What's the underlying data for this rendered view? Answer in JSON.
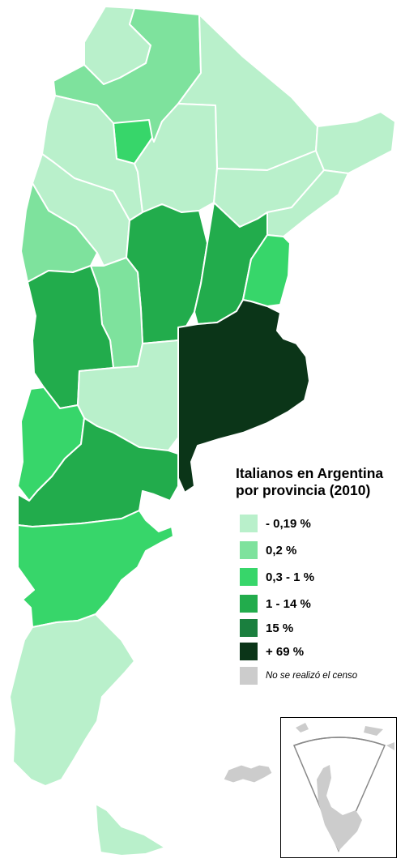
{
  "legend": {
    "title_line1": "Italianos en Argentina",
    "title_line2": "por provincia (2010)",
    "items": [
      {
        "label": "- 0,19 %",
        "color": "#b9f0cb"
      },
      {
        "label": "0,2 %",
        "color": "#7ee29d"
      },
      {
        "label": "0,3 - 1 %",
        "color": "#37d66a"
      },
      {
        "label": "1 - 14 %",
        "color": "#22ac4c"
      },
      {
        "label": "15 %",
        "color": "#1a7f3e"
      },
      {
        "label": "+ 69 %",
        "color": "#0b3518"
      }
    ],
    "no_census": {
      "label": "No se realizó el censo",
      "color": "#cccccc"
    }
  },
  "provinces": [
    {
      "name": "Jujuy",
      "class": "- 0,19 %"
    },
    {
      "name": "Salta",
      "class": "0,2 %"
    },
    {
      "name": "Formosa",
      "class": "- 0,19 %"
    },
    {
      "name": "Catamarca",
      "class": "- 0,19 %"
    },
    {
      "name": "Tucumán",
      "class": "0,3 - 1 %"
    },
    {
      "name": "Santiago del Estero",
      "class": "- 0,19 %"
    },
    {
      "name": "Chaco",
      "class": "- 0,19 %"
    },
    {
      "name": "Misiones",
      "class": "- 0,19 %"
    },
    {
      "name": "La Rioja",
      "class": "- 0,19 %"
    },
    {
      "name": "San Juan",
      "class": "0,2 %"
    },
    {
      "name": "Córdoba",
      "class": "1 - 14 %"
    },
    {
      "name": "Santa Fe",
      "class": "1 - 14 %"
    },
    {
      "name": "Corrientes",
      "class": "- 0,19 %"
    },
    {
      "name": "Entre Ríos",
      "class": "0,3 - 1 %"
    },
    {
      "name": "San Luis",
      "class": "0,2 %"
    },
    {
      "name": "Mendoza",
      "class": "1 - 14 %"
    },
    {
      "name": "Buenos Aires",
      "class": "+ 69 %"
    },
    {
      "name": "La Pampa",
      "class": "- 0,19 %"
    },
    {
      "name": "Neuquén",
      "class": "0,3 - 1 %"
    },
    {
      "name": "Río Negro",
      "class": "1 - 14 %"
    },
    {
      "name": "Chubut",
      "class": "0,3 - 1 %"
    },
    {
      "name": "Santa Cruz",
      "class": "- 0,19 %"
    },
    {
      "name": "Tierra del Fuego",
      "class": "- 0,19 %"
    },
    {
      "name": "Islas Malvinas",
      "class": "No se realizó el censo"
    }
  ]
}
